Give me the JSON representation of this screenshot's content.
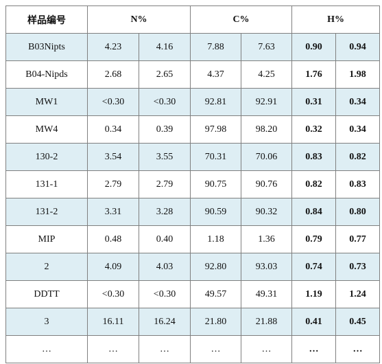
{
  "table": {
    "headers": {
      "sample": "样品编号",
      "n": "N%",
      "c": "C%",
      "h": "H%"
    },
    "rows": [
      {
        "sample": "B03Nipts",
        "n": [
          "4.23",
          "4.16"
        ],
        "c": [
          "7.88",
          "7.63"
        ],
        "h": [
          "0.90",
          "0.94"
        ]
      },
      {
        "sample": "B04-Nipds",
        "n": [
          "2.68",
          "2.65"
        ],
        "c": [
          "4.37",
          "4.25"
        ],
        "h": [
          "1.76",
          "1.98"
        ]
      },
      {
        "sample": "MW1",
        "n": [
          "<0.30",
          "<0.30"
        ],
        "c": [
          "92.81",
          "92.91"
        ],
        "h": [
          "0.31",
          "0.34"
        ]
      },
      {
        "sample": "MW4",
        "n": [
          "0.34",
          "0.39"
        ],
        "c": [
          "97.98",
          "98.20"
        ],
        "h": [
          "0.32",
          "0.34"
        ]
      },
      {
        "sample": "130-2",
        "n": [
          "3.54",
          "3.55"
        ],
        "c": [
          "70.31",
          "70.06"
        ],
        "h": [
          "0.83",
          "0.82"
        ]
      },
      {
        "sample": "131-1",
        "n": [
          "2.79",
          "2.79"
        ],
        "c": [
          "90.75",
          "90.76"
        ],
        "h": [
          "0.82",
          "0.83"
        ]
      },
      {
        "sample": "131-2",
        "n": [
          "3.31",
          "3.28"
        ],
        "c": [
          "90.59",
          "90.32"
        ],
        "h": [
          "0.84",
          "0.80"
        ]
      },
      {
        "sample": "MIP",
        "n": [
          "0.48",
          "0.40"
        ],
        "c": [
          "1.18",
          "1.36"
        ],
        "h": [
          "0.79",
          "0.77"
        ]
      },
      {
        "sample": "2",
        "n": [
          "4.09",
          "4.03"
        ],
        "c": [
          "92.80",
          "93.03"
        ],
        "h": [
          "0.74",
          "0.73"
        ]
      },
      {
        "sample": "DDTT",
        "n": [
          "<0.30",
          "<0.30"
        ],
        "c": [
          "49.57",
          "49.31"
        ],
        "h": [
          "1.19",
          "1.24"
        ]
      },
      {
        "sample": "3",
        "n": [
          "16.11",
          "16.24"
        ],
        "c": [
          "21.80",
          "21.88"
        ],
        "h": [
          "0.41",
          "0.45"
        ]
      },
      {
        "sample": "…",
        "n": [
          "…",
          "…"
        ],
        "c": [
          "…",
          "…"
        ],
        "h": [
          "…",
          "…"
        ]
      }
    ]
  }
}
